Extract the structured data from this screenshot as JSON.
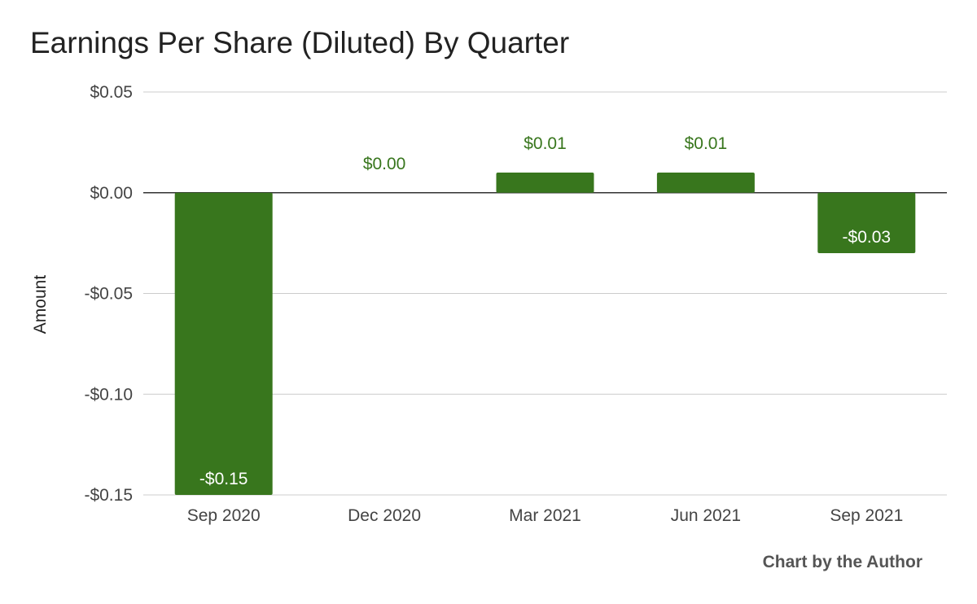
{
  "chart_data": {
    "type": "bar",
    "title": "Earnings Per Share (Diluted) By Quarter",
    "ylabel": "Amount",
    "xlabel": "",
    "categories": [
      "Sep 2020",
      "Dec 2020",
      "Mar 2021",
      "Jun 2021",
      "Sep 2021"
    ],
    "values": [
      -0.15,
      0.0,
      0.01,
      0.01,
      -0.03
    ],
    "data_labels": [
      "-$0.15",
      "$0.00",
      "$0.01",
      "$0.01",
      "-$0.03"
    ],
    "yticks": [
      0.05,
      0.0,
      -0.05,
      -0.1,
      -0.15
    ],
    "ytick_labels": [
      "$0.05",
      "$0.00",
      "-$0.05",
      "-$0.10",
      "-$0.15"
    ],
    "ylim": [
      -0.15,
      0.05
    ],
    "grid": true,
    "bar_color": "#38761d",
    "label_color_outside": "#38761d",
    "label_color_inside": "#ffffff",
    "credit": "Chart by the Author"
  }
}
